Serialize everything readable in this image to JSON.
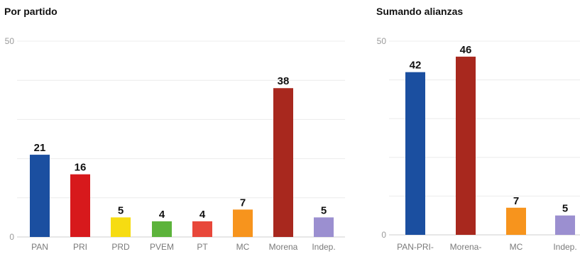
{
  "chart_data": [
    {
      "type": "bar",
      "title": "Por partido",
      "categories": [
        "PAN",
        "PRI",
        "PRD",
        "PVEM",
        "PT",
        "MC",
        "Morena",
        "Indep."
      ],
      "values": [
        21,
        16,
        5,
        4,
        4,
        7,
        38,
        5
      ],
      "colors": [
        "#1b4fa0",
        "#d7191c",
        "#f6dc12",
        "#5cb33b",
        "#e8473a",
        "#f7941d",
        "#a8281e",
        "#9b8fd0"
      ],
      "ylim": [
        0,
        50
      ],
      "y_tick_labels": [
        "50",
        "0"
      ],
      "grid": true
    },
    {
      "type": "bar",
      "title": "Sumando alianzas",
      "categories": [
        "PAN-PRI-",
        "Morena-",
        "MC",
        "Indep."
      ],
      "values": [
        42,
        46,
        7,
        5
      ],
      "colors": [
        "#1b4fa0",
        "#a8281e",
        "#f7941d",
        "#9b8fd0"
      ],
      "ylim": [
        0,
        50
      ],
      "y_tick_labels": [
        "50",
        "0"
      ],
      "grid": true
    }
  ]
}
